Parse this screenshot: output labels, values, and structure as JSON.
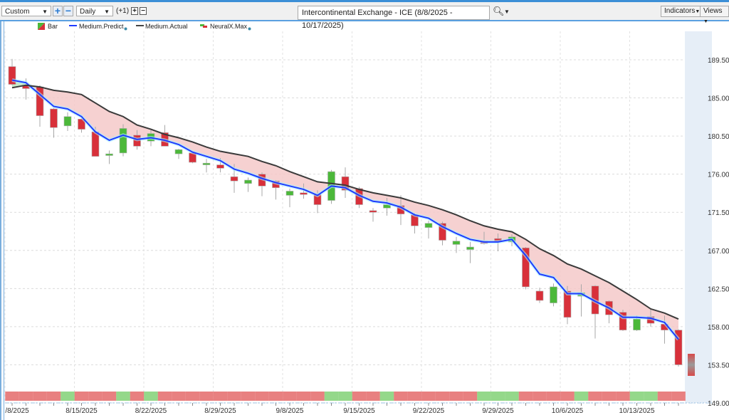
{
  "toolbar": {
    "range_select": "Custom",
    "period_select": "Daily",
    "offset_label": "(+1)",
    "title": "Intercontinental Exchange - ICE (8/8/2025 - 10/17/2025)",
    "indicators_label": "Indicators",
    "views_label": "Views"
  },
  "legend": [
    {
      "label": "Bar"
    },
    {
      "label": "Medium.Predict"
    },
    {
      "label": "Medium.Actual"
    },
    {
      "label": "NeuralX.Max"
    }
  ],
  "colors": {
    "up": "#4cb83a",
    "down": "#d8303a",
    "predict": "#1f3cff",
    "actual": "#3a3a3a",
    "fill_below": "#f5c9c9",
    "fill_above": "#bfe8c0",
    "signal_up": "#94d88a",
    "signal_down": "#e88080"
  },
  "chart_data": {
    "type": "candlestick",
    "title": "Intercontinental Exchange - ICE (8/8/2025 - 10/17/2025)",
    "ylim": [
      149.0,
      189.5
    ],
    "y_ticks": [
      "189.50",
      "185.00",
      "180.50",
      "176.00",
      "171.50",
      "167.00",
      "162.50",
      "158.00",
      "153.50",
      "149.00"
    ],
    "x_ticks": [
      {
        "index": 0,
        "label": "/8/2025"
      },
      {
        "index": 5,
        "label": "8/15/2025"
      },
      {
        "index": 10,
        "label": "8/22/2025"
      },
      {
        "index": 15,
        "label": "8/29/2025"
      },
      {
        "index": 20,
        "label": "9/8/2025"
      },
      {
        "index": 25,
        "label": "9/15/2025"
      },
      {
        "index": 30,
        "label": "9/22/2025"
      },
      {
        "index": 35,
        "label": "9/29/2025"
      },
      {
        "index": 40,
        "label": "10/6/2025"
      },
      {
        "index": 45,
        "label": "10/13/2025"
      }
    ],
    "ohlc": [
      [
        188.7,
        189.6,
        186.5,
        186.6
      ],
      [
        186.5,
        187.3,
        184.8,
        186.1
      ],
      [
        186.3,
        186.5,
        181.6,
        182.9
      ],
      [
        183.7,
        183.8,
        180.3,
        181.5
      ],
      [
        181.7,
        183.3,
        181.1,
        182.8
      ],
      [
        182.5,
        182.6,
        180.9,
        181.3
      ],
      [
        181.0,
        181.6,
        178.1,
        178.1
      ],
      [
        178.2,
        178.8,
        177.2,
        178.4
      ],
      [
        178.5,
        181.9,
        178.1,
        181.4
      ],
      [
        180.6,
        181.2,
        178.9,
        179.3
      ],
      [
        179.9,
        181.2,
        179.3,
        180.8
      ],
      [
        180.9,
        181.8,
        179.3,
        179.3
      ],
      [
        178.4,
        179.0,
        177.8,
        178.9
      ],
      [
        178.5,
        178.6,
        177.3,
        177.4
      ],
      [
        177.1,
        177.8,
        176.2,
        177.3
      ],
      [
        177.1,
        177.9,
        176.2,
        176.7
      ],
      [
        175.7,
        177.2,
        173.8,
        175.2
      ],
      [
        174.9,
        175.6,
        173.9,
        175.3
      ],
      [
        176.0,
        176.2,
        173.4,
        174.6
      ],
      [
        175.2,
        175.3,
        173.0,
        174.4
      ],
      [
        173.5,
        174.3,
        172.1,
        174.0
      ],
      [
        173.8,
        174.9,
        173.1,
        173.6
      ],
      [
        173.6,
        174.1,
        171.4,
        172.4
      ],
      [
        172.9,
        176.5,
        172.5,
        176.3
      ],
      [
        175.7,
        176.8,
        173.2,
        174.1
      ],
      [
        174.3,
        174.5,
        172.0,
        172.4
      ],
      [
        171.7,
        172.0,
        170.4,
        171.5
      ],
      [
        172.0,
        173.2,
        171.1,
        172.4
      ],
      [
        172.3,
        173.5,
        170.0,
        171.3
      ],
      [
        171.2,
        171.4,
        169.0,
        169.9
      ],
      [
        169.7,
        170.5,
        168.4,
        170.2
      ],
      [
        170.2,
        170.4,
        167.6,
        168.2
      ],
      [
        167.7,
        168.6,
        166.7,
        168.1
      ],
      [
        167.1,
        168.0,
        165.5,
        167.4
      ],
      [
        168.1,
        169.2,
        167.7,
        167.8
      ],
      [
        168.4,
        169.0,
        166.9,
        168.1
      ],
      [
        168.0,
        168.9,
        167.5,
        168.6
      ],
      [
        167.3,
        167.4,
        162.4,
        162.7
      ],
      [
        162.2,
        162.6,
        160.8,
        161.1
      ],
      [
        160.8,
        163.1,
        160.4,
        162.7
      ],
      [
        162.2,
        162.8,
        158.3,
        159.1
      ],
      [
        161.6,
        163.0,
        159.2,
        162.0
      ],
      [
        162.8,
        162.9,
        156.6,
        159.5
      ],
      [
        161.0,
        161.1,
        158.4,
        159.4
      ],
      [
        159.7,
        160.0,
        157.5,
        157.6
      ],
      [
        157.6,
        159.3,
        157.5,
        158.9
      ],
      [
        159.2,
        160.1,
        158.0,
        158.4
      ],
      [
        158.3,
        159.3,
        156.0,
        157.6
      ],
      [
        157.6,
        157.7,
        153.3,
        153.5
      ]
    ],
    "series": [
      {
        "name": "Medium.Predict",
        "values": [
          187.1,
          186.8,
          185.4,
          184.0,
          183.7,
          182.8,
          181.0,
          180.0,
          180.6,
          180.1,
          180.3,
          180.0,
          179.5,
          178.6,
          178.1,
          177.6,
          176.6,
          176.1,
          175.5,
          175.0,
          174.6,
          174.2,
          173.5,
          174.6,
          174.4,
          173.5,
          172.8,
          172.6,
          172.1,
          171.2,
          170.8,
          169.8,
          169.0,
          168.3,
          168.0,
          168.0,
          168.3,
          166.4,
          164.2,
          163.8,
          161.9,
          161.9,
          161.0,
          160.2,
          159.1,
          159.1,
          159.0,
          158.5,
          156.5
        ]
      },
      {
        "name": "Medium.Actual",
        "values": [
          186.2,
          186.5,
          186.3,
          185.9,
          185.7,
          185.4,
          184.4,
          183.4,
          182.8,
          181.8,
          181.3,
          180.7,
          180.3,
          179.8,
          179.2,
          178.7,
          178.4,
          178.1,
          177.5,
          177.0,
          176.3,
          175.7,
          175.1,
          174.9,
          174.7,
          174.2,
          173.8,
          173.5,
          173.2,
          172.7,
          172.3,
          171.8,
          171.2,
          170.5,
          169.9,
          169.5,
          169.2,
          168.3,
          167.2,
          166.4,
          165.4,
          164.8,
          164.0,
          163.2,
          162.2,
          161.2,
          160.1,
          159.6,
          158.9
        ]
      }
    ],
    "signal_up_indices": [
      4,
      8,
      10,
      23,
      24,
      27,
      34,
      35,
      36,
      41,
      45,
      46
    ]
  }
}
